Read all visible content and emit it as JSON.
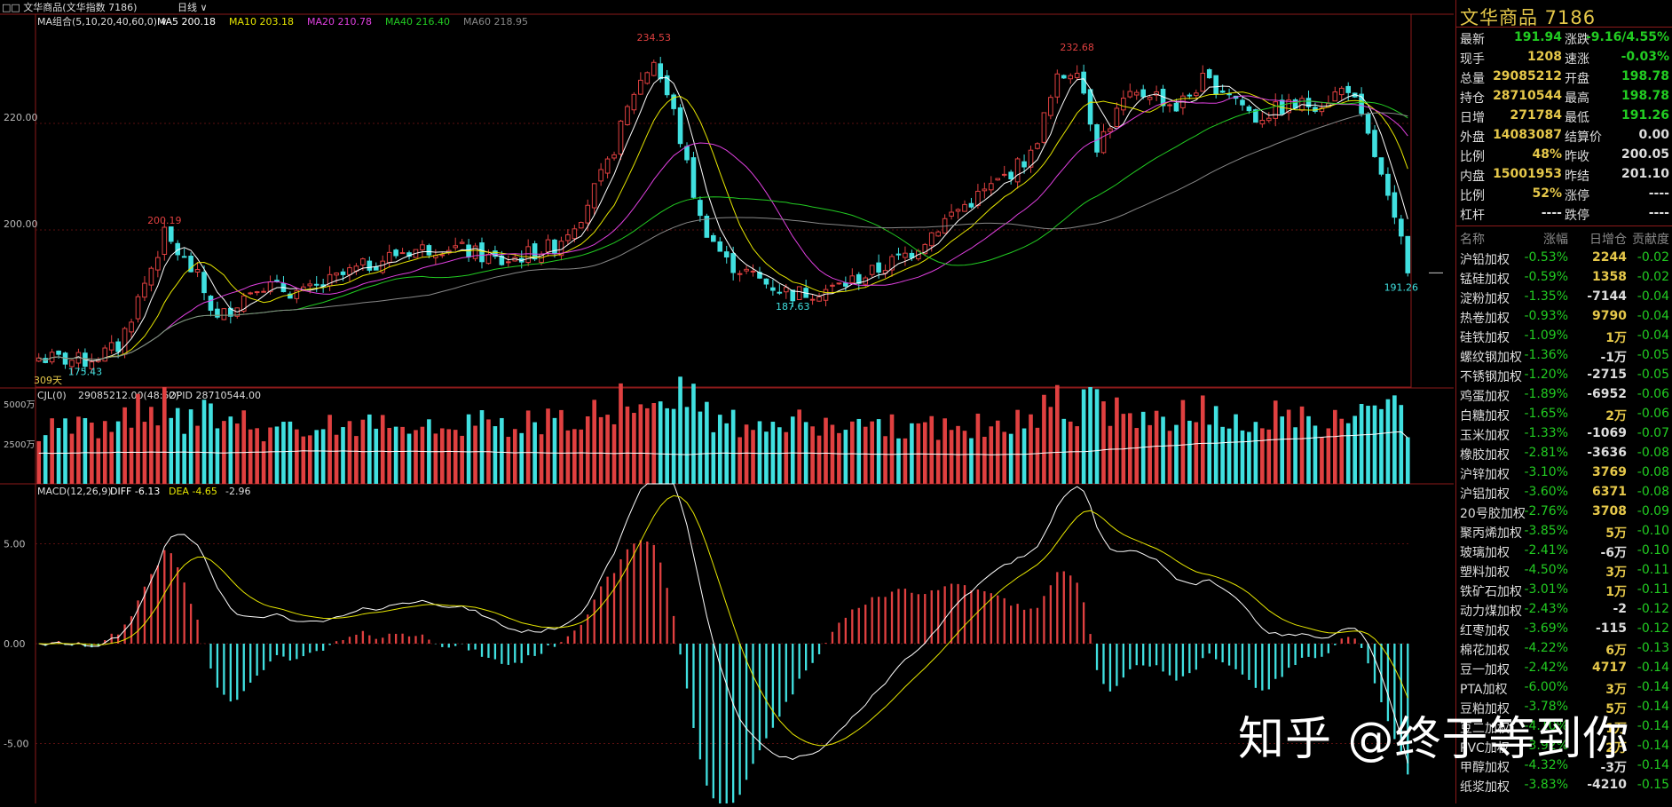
{
  "chart_data": {
    "type": "candlestick",
    "window_title": "文华商品(文华指数 7186)",
    "period": "日线",
    "ma_group_label": "MA组合(5,10,20,40,60,0)",
    "ma_legend": [
      {
        "name": "MA5",
        "value": "200.18",
        "color": "#ffffff"
      },
      {
        "name": "MA10",
        "value": "203.18",
        "color": "#e6e600"
      },
      {
        "name": "MA20",
        "value": "210.78",
        "color": "#e040e0"
      },
      {
        "name": "MA40",
        "value": "216.40",
        "color": "#22cc22"
      },
      {
        "name": "MA60",
        "value": "218.95",
        "color": "#888888"
      }
    ],
    "price_ylim": [
      170.5,
      240.5
    ],
    "price_ticks": [
      "220.00",
      "200.00"
    ],
    "price_tick_values": [
      220,
      200
    ],
    "annotations": [
      {
        "text": "234.53",
        "index": 93,
        "value": 234.53,
        "side": "high"
      },
      {
        "text": "200.19",
        "index": 19,
        "value": 200.19,
        "side": "high"
      },
      {
        "text": "175.43",
        "index": 7,
        "value": 175.43,
        "side": "low"
      },
      {
        "text": "187.63",
        "index": 114,
        "value": 187.63,
        "side": "low"
      },
      {
        "text": "232.68",
        "index": 157,
        "value": 232.68,
        "side": "high"
      },
      {
        "text": "191.26",
        "index": 206,
        "value": 191.26,
        "side": "low"
      }
    ],
    "days_label": "309天",
    "anchors": [
      [
        0,
        176
      ],
      [
        7,
        175.4
      ],
      [
        12,
        178
      ],
      [
        19,
        199
      ],
      [
        24,
        191
      ],
      [
        27,
        183
      ],
      [
        33,
        190
      ],
      [
        40,
        188
      ],
      [
        47,
        192
      ],
      [
        55,
        196
      ],
      [
        62,
        197
      ],
      [
        70,
        194
      ],
      [
        78,
        197
      ],
      [
        82,
        203
      ],
      [
        86,
        212
      ],
      [
        90,
        226
      ],
      [
        93,
        232
      ],
      [
        96,
        222
      ],
      [
        100,
        202
      ],
      [
        104,
        194
      ],
      [
        110,
        190
      ],
      [
        114,
        188
      ],
      [
        120,
        189
      ],
      [
        126,
        192
      ],
      [
        132,
        196
      ],
      [
        138,
        203
      ],
      [
        144,
        208
      ],
      [
        150,
        214
      ],
      [
        154,
        228
      ],
      [
        157,
        231
      ],
      [
        160,
        216
      ],
      [
        164,
        224
      ],
      [
        168,
        226
      ],
      [
        172,
        223
      ],
      [
        176,
        228
      ],
      [
        180,
        226
      ],
      [
        184,
        221
      ],
      [
        188,
        223
      ],
      [
        194,
        224
      ],
      [
        198,
        227
      ],
      [
        202,
        214
      ],
      [
        205,
        201
      ],
      [
        207,
        195
      ]
    ],
    "volume_label": "CJL(0)",
    "volume_value": "29085212.00(48:52)",
    "opid_label": "OPID 28710544.00",
    "volume_ticks": [
      "5000万",
      "2500万"
    ],
    "volume_tick_values": [
      5000,
      2500
    ],
    "volume_unit": "万",
    "macd_label": "MACD(12,26,9)",
    "diff_label": "DIFF -6.13",
    "dea_label": "DEA -4.65",
    "macd_value": "-2.96",
    "macd_ticks": [
      "5.00",
      "0.00",
      "-5.00"
    ],
    "macd_tick_values": [
      5,
      0,
      -5
    ],
    "colors": {
      "up": "#e04040",
      "down": "#40e0e0",
      "axis": "#8b1a1a",
      "grid": "#5a1010"
    }
  },
  "quote": {
    "title": "文华商品 7186",
    "rows": [
      {
        "l1": "最新",
        "v1": "191.94",
        "c1": "#22cc22",
        "l2": "涨跌",
        "v2": "-9.16/4.55%",
        "c2": "#22cc22"
      },
      {
        "l1": "现手",
        "v1": "1208",
        "c1": "#e6c84a",
        "l2": "速涨",
        "v2": "-0.03%",
        "c2": "#22cc22"
      },
      {
        "l1": "总量",
        "v1": "29085212",
        "c1": "#e6c84a",
        "l2": "开盘",
        "v2": "198.78",
        "c2": "#22cc22"
      },
      {
        "l1": "持仓",
        "v1": "28710544",
        "c1": "#e6c84a",
        "l2": "最高",
        "v2": "198.78",
        "c2": "#22cc22"
      },
      {
        "l1": "日增",
        "v1": "271784",
        "c1": "#e6c84a",
        "l2": "最低",
        "v2": "191.26",
        "c2": "#22cc22"
      },
      {
        "l1": "外盘",
        "v1": "14083087",
        "c1": "#e6c84a",
        "l2": "结算价",
        "v2": "0.00",
        "c2": "#dddddd"
      },
      {
        "l1": "比例",
        "v1": "48%",
        "c1": "#e6c84a",
        "l2": "昨收",
        "v2": "200.05",
        "c2": "#dddddd"
      },
      {
        "l1": "内盘",
        "v1": "15001953",
        "c1": "#e6c84a",
        "l2": "昨结",
        "v2": "201.10",
        "c2": "#dddddd"
      },
      {
        "l1": "比例",
        "v1": "52%",
        "c1": "#e6c84a",
        "l2": "涨停",
        "v2": "----",
        "c2": "#dddddd"
      },
      {
        "l1": "杠杆",
        "v1": "----",
        "c1": "#dddddd",
        "l2": "跌停",
        "v2": "----",
        "c2": "#dddddd"
      }
    ]
  },
  "list": {
    "headers": [
      "名称",
      "涨幅",
      "日增仓",
      "贡献度"
    ],
    "rows": [
      {
        "name": "沪铅加权",
        "chg": "-0.53%",
        "oi": "2244",
        "con": "-0.02",
        "oic": "#e6c84a"
      },
      {
        "name": "锰硅加权",
        "chg": "-0.59%",
        "oi": "1358",
        "con": "-0.02",
        "oic": "#e6c84a"
      },
      {
        "name": "淀粉加权",
        "chg": "-1.35%",
        "oi": "-7144",
        "con": "-0.04",
        "oic": "#dddddd"
      },
      {
        "name": "热卷加权",
        "chg": "-0.93%",
        "oi": "9790",
        "con": "-0.04",
        "oic": "#e6c84a"
      },
      {
        "name": "硅铁加权",
        "chg": "-1.09%",
        "oi": "1万",
        "con": "-0.04",
        "oic": "#e6c84a"
      },
      {
        "name": "螺纹钢加权",
        "chg": "-1.36%",
        "oi": "-1万",
        "con": "-0.05",
        "oic": "#dddddd"
      },
      {
        "name": "不锈钢加权",
        "chg": "-1.20%",
        "oi": "-2715",
        "con": "-0.05",
        "oic": "#dddddd"
      },
      {
        "name": "鸡蛋加权",
        "chg": "-1.89%",
        "oi": "-6952",
        "con": "-0.06",
        "oic": "#dddddd"
      },
      {
        "name": "白糖加权",
        "chg": "-1.65%",
        "oi": "2万",
        "con": "-0.06",
        "oic": "#e6c84a"
      },
      {
        "name": "玉米加权",
        "chg": "-1.33%",
        "oi": "-1069",
        "con": "-0.07",
        "oic": "#dddddd"
      },
      {
        "name": "橡胶加权",
        "chg": "-2.81%",
        "oi": "-3636",
        "con": "-0.08",
        "oic": "#dddddd"
      },
      {
        "name": "沪锌加权",
        "chg": "-3.10%",
        "oi": "3769",
        "con": "-0.08",
        "oic": "#e6c84a"
      },
      {
        "name": "沪铝加权",
        "chg": "-3.60%",
        "oi": "6371",
        "con": "-0.08",
        "oic": "#e6c84a"
      },
      {
        "name": "20号胶加权",
        "chg": "-2.76%",
        "oi": "3708",
        "con": "-0.09",
        "oic": "#e6c84a"
      },
      {
        "name": "聚丙烯加权",
        "chg": "-3.85%",
        "oi": "5万",
        "con": "-0.10",
        "oic": "#e6c84a"
      },
      {
        "name": "玻璃加权",
        "chg": "-2.41%",
        "oi": "-6万",
        "con": "-0.10",
        "oic": "#dddddd"
      },
      {
        "name": "塑料加权",
        "chg": "-4.50%",
        "oi": "3万",
        "con": "-0.11",
        "oic": "#e6c84a"
      },
      {
        "name": "铁矿石加权",
        "chg": "-3.01%",
        "oi": "1万",
        "con": "-0.11",
        "oic": "#e6c84a"
      },
      {
        "name": "动力煤加权",
        "chg": "-2.43%",
        "oi": "-2",
        "con": "-0.12",
        "oic": "#dddddd"
      },
      {
        "name": "红枣加权",
        "chg": "-3.69%",
        "oi": "-115",
        "con": "-0.12",
        "oic": "#dddddd"
      },
      {
        "name": "棉花加权",
        "chg": "-4.22%",
        "oi": "6万",
        "con": "-0.13",
        "oic": "#e6c84a"
      },
      {
        "name": "豆一加权",
        "chg": "-2.42%",
        "oi": "4717",
        "con": "-0.14",
        "oic": "#e6c84a"
      },
      {
        "name": "PTA加权",
        "chg": "-6.00%",
        "oi": "3万",
        "con": "-0.14",
        "oic": "#e6c84a"
      },
      {
        "name": "豆粕加权",
        "chg": "-3.78%",
        "oi": "5万",
        "con": "-0.14",
        "oic": "#e6c84a"
      },
      {
        "name": "豆二加权",
        "chg": "-4.10%",
        "oi": "1万",
        "con": "-0.14",
        "oic": "#e6c84a"
      },
      {
        "name": "PVC加权",
        "chg": "-3.92%",
        "oi": "2万",
        "con": "-0.14",
        "oic": "#e6c84a"
      },
      {
        "name": "甲醇加权",
        "chg": "-4.32%",
        "oi": "-3万",
        "con": "-0.14",
        "oic": "#dddddd"
      },
      {
        "name": "纸浆加权",
        "chg": "-3.83%",
        "oi": "-4210",
        "con": "-0.15",
        "oic": "#dddddd"
      }
    ]
  },
  "watermark": "知乎 @终于等到你"
}
